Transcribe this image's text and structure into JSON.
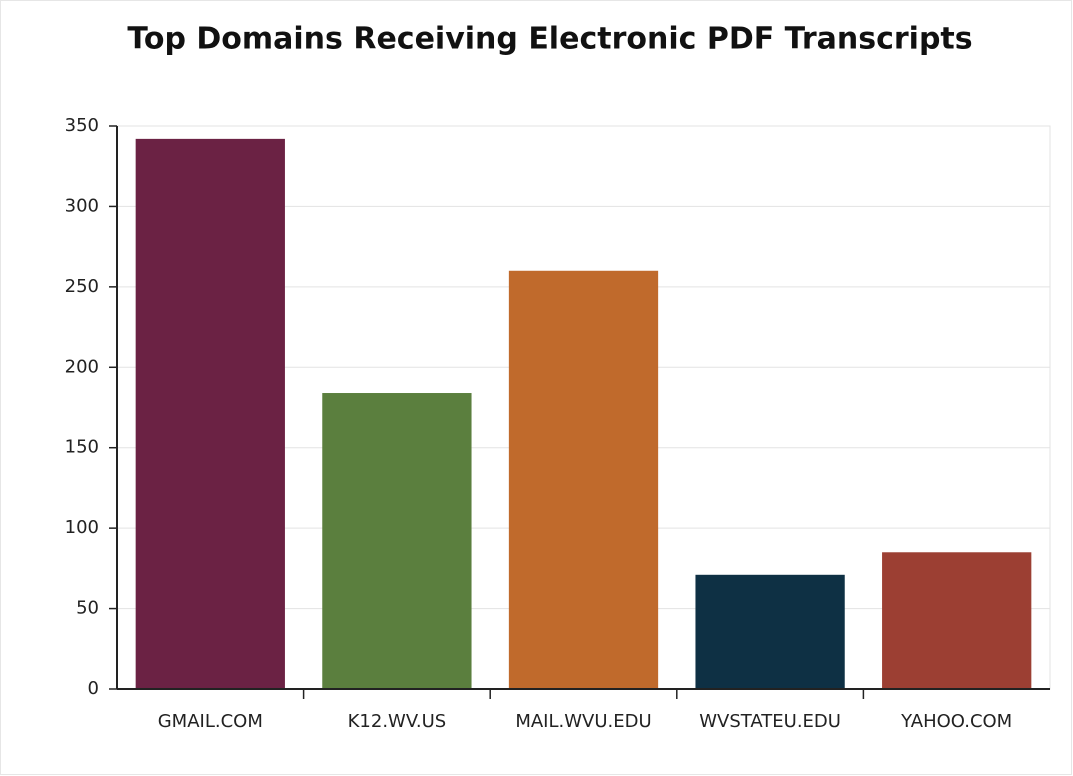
{
  "chart_data": {
    "type": "bar",
    "title": "Top Domains Receiving Electronic PDF Transcripts",
    "categories": [
      "GMAIL.COM",
      "K12.WV.US",
      "MAIL.WVU.EDU",
      "WVSTATEU.EDU",
      "YAHOO.COM"
    ],
    "values": [
      342,
      184,
      260,
      71,
      85
    ],
    "colors": [
      "#6b2244",
      "#5b7f3e",
      "#c06a2c",
      "#0e3044",
      "#9c3f33"
    ],
    "ylim": [
      0,
      350
    ],
    "yticks": [
      0,
      50,
      100,
      150,
      200,
      250,
      300,
      350
    ],
    "grid": true
  }
}
